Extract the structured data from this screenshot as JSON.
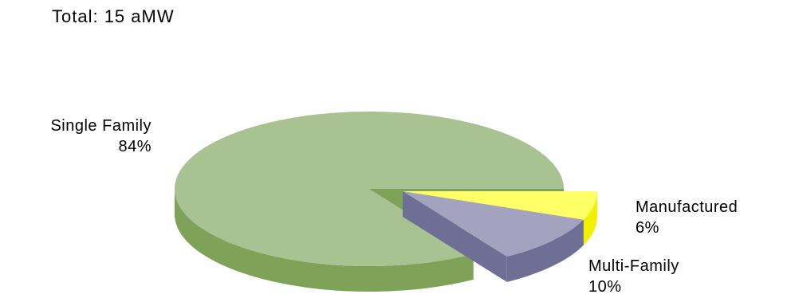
{
  "chart_data": {
    "type": "pie",
    "title": "Total: 15 aMW",
    "slices": [
      {
        "name": "Single Family",
        "value": 84,
        "pct_label": "84%",
        "color": "#a9c291",
        "side_color": "#7ea358"
      },
      {
        "name": "Multi-Family",
        "value": 10,
        "pct_label": "10%",
        "color": "#a3a3bf",
        "side_color": "#6d7094"
      },
      {
        "name": "Manufactured",
        "value": 6,
        "pct_label": "6%",
        "color": "#ffff66",
        "side_color": "#f0f000"
      }
    ],
    "three_d": true,
    "exploded": [
      "Multi-Family",
      "Manufactured"
    ],
    "legend": "none"
  }
}
